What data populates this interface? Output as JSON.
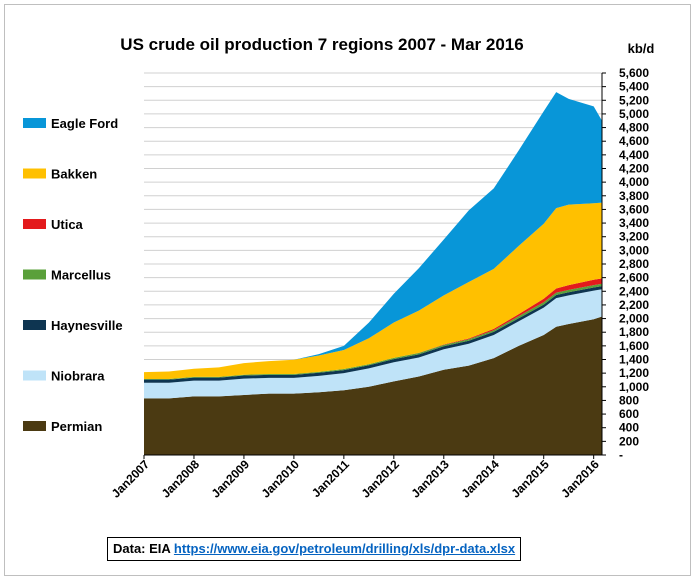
{
  "chart_data": {
    "type": "area",
    "stacked": true,
    "title": "US crude oil production 7 regions 2007 - Mar 2016",
    "unit_label": "kb/d",
    "ylim": [
      0,
      5600
    ],
    "yticks": [
      {
        "value": 0,
        "label": "-"
      },
      {
        "value": 200,
        "label": "200"
      },
      {
        "value": 400,
        "label": "400"
      },
      {
        "value": 600,
        "label": "600"
      },
      {
        "value": 800,
        "label": "800"
      },
      {
        "value": 1000,
        "label": "1,000"
      },
      {
        "value": 1200,
        "label": "1,200"
      },
      {
        "value": 1400,
        "label": "1,400"
      },
      {
        "value": 1600,
        "label": "1,600"
      },
      {
        "value": 1800,
        "label": "1,800"
      },
      {
        "value": 2000,
        "label": "2,000"
      },
      {
        "value": 2200,
        "label": "2,200"
      },
      {
        "value": 2400,
        "label": "2,400"
      },
      {
        "value": 2600,
        "label": "2,600"
      },
      {
        "value": 2800,
        "label": "2,800"
      },
      {
        "value": 3000,
        "label": "3,000"
      },
      {
        "value": 3200,
        "label": "3,200"
      },
      {
        "value": 3400,
        "label": "3,400"
      },
      {
        "value": 3600,
        "label": "3,600"
      },
      {
        "value": 3800,
        "label": "3,800"
      },
      {
        "value": 4000,
        "label": "4,000"
      },
      {
        "value": 4200,
        "label": "4,200"
      },
      {
        "value": 4400,
        "label": "4,400"
      },
      {
        "value": 4600,
        "label": "4,600"
      },
      {
        "value": 4800,
        "label": "4,800"
      },
      {
        "value": 5000,
        "label": "5,000"
      },
      {
        "value": 5200,
        "label": "5,200"
      },
      {
        "value": 5400,
        "label": "5,400"
      },
      {
        "value": 5600,
        "label": "5,600"
      }
    ],
    "x_labels": [
      "Jan2007",
      "Jan2008",
      "Jan2009",
      "Jan2010",
      "Jan2011",
      "Jan2012",
      "Jan2013",
      "Jan2014",
      "Jan2015",
      "Jan2016"
    ],
    "x_range": [
      "2007-01",
      "2016-03"
    ],
    "grid": true,
    "legend_position": "left",
    "x": [
      "2007-01",
      "2007-07",
      "2008-01",
      "2008-07",
      "2009-01",
      "2009-07",
      "2010-01",
      "2010-07",
      "2011-01",
      "2011-07",
      "2012-01",
      "2012-07",
      "2013-01",
      "2013-07",
      "2014-01",
      "2014-07",
      "2015-01",
      "2015-04",
      "2015-07",
      "2016-01",
      "2016-03"
    ],
    "series": [
      {
        "name": "Permian",
        "color": "#4b3a12",
        "values": [
          830,
          830,
          860,
          860,
          880,
          900,
          900,
          920,
          950,
          1000,
          1080,
          1150,
          1250,
          1310,
          1420,
          1600,
          1760,
          1880,
          1920,
          1990,
          2030
        ]
      },
      {
        "name": "Niobrara",
        "color": "#bfe3f8",
        "values": [
          230,
          230,
          230,
          230,
          240,
          230,
          230,
          240,
          250,
          270,
          280,
          280,
          300,
          320,
          340,
          360,
          400,
          420,
          420,
          420,
          400
        ]
      },
      {
        "name": "Haynesville",
        "color": "#0e3551",
        "values": [
          45,
          45,
          45,
          45,
          45,
          45,
          45,
          45,
          45,
          45,
          45,
          45,
          45,
          45,
          45,
          45,
          45,
          45,
          45,
          45,
          45
        ]
      },
      {
        "name": "Marcellus",
        "color": "#5aa03a",
        "values": [
          10,
          10,
          10,
          10,
          12,
          12,
          12,
          14,
          15,
          16,
          18,
          20,
          20,
          22,
          24,
          30,
          35,
          35,
          35,
          35,
          35
        ]
      },
      {
        "name": "Utica",
        "color": "#e31a1c",
        "values": [
          0,
          0,
          0,
          0,
          0,
          0,
          0,
          0,
          0,
          0,
          0,
          2,
          5,
          10,
          20,
          30,
          50,
          60,
          70,
          80,
          80
        ]
      },
      {
        "name": "Bakken",
        "color": "#ffc000",
        "values": [
          100,
          110,
          120,
          140,
          170,
          190,
          210,
          240,
          280,
          380,
          520,
          620,
          720,
          830,
          880,
          1000,
          1100,
          1180,
          1180,
          1120,
          1110
        ]
      },
      {
        "name": "Eagle Ford",
        "color": "#0896d8",
        "values": [
          0,
          0,
          0,
          0,
          0,
          0,
          0,
          20,
          60,
          230,
          420,
          620,
          820,
          1050,
          1180,
          1400,
          1650,
          1700,
          1550,
          1420,
          1200
        ]
      }
    ]
  },
  "source": {
    "prefix": "Data: EIA ",
    "link": "https://www.eia.gov/petroleum/drilling/xls/dpr-data.xlsx"
  }
}
